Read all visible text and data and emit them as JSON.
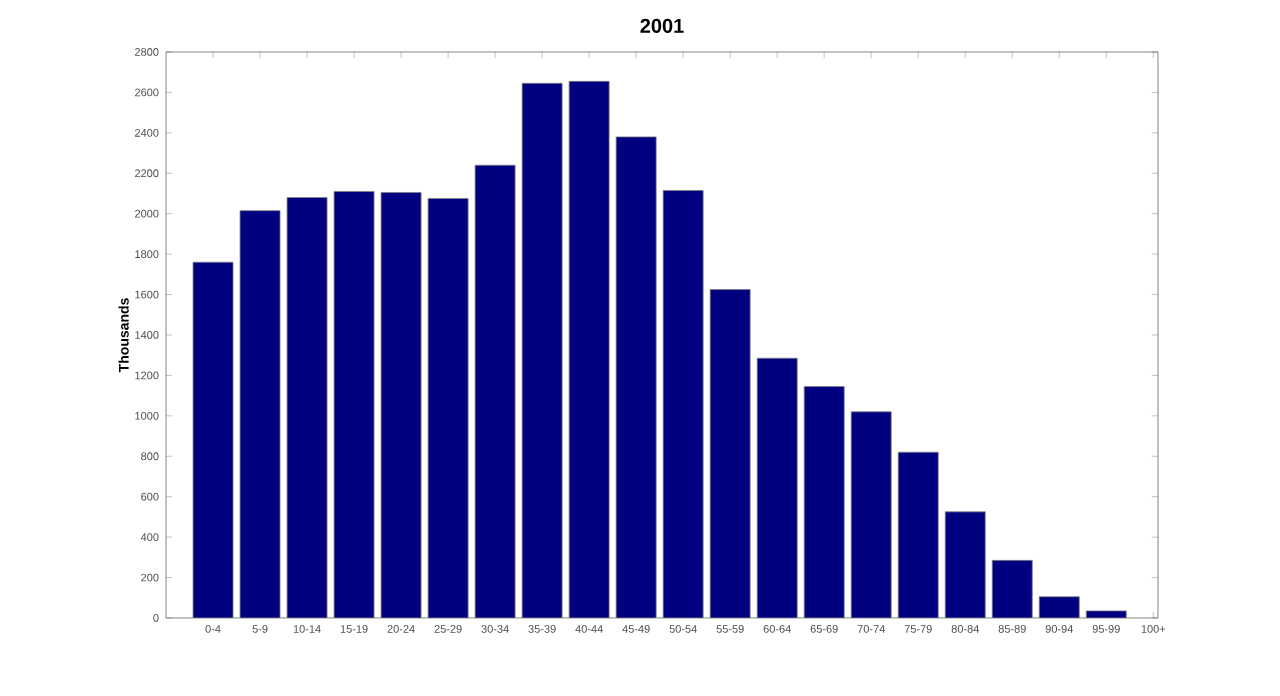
{
  "chart_data": {
    "type": "bar",
    "title": "2001",
    "ylabel": "Thousands",
    "categories": [
      "0-4",
      "5-9",
      "10-14",
      "15-19",
      "20-24",
      "25-29",
      "30-34",
      "35-39",
      "40-44",
      "45-49",
      "50-54",
      "55-59",
      "60-64",
      "65-69",
      "70-74",
      "75-79",
      "80-84",
      "85-89",
      "90-94",
      "95-99",
      "100+"
    ],
    "values": [
      1760,
      2015,
      2080,
      2110,
      2105,
      2075,
      2240,
      2645,
      2655,
      2380,
      2115,
      1625,
      1285,
      1145,
      1020,
      820,
      525,
      285,
      105,
      35,
      null
    ],
    "color": "#000080",
    "ylim": [
      0,
      2800
    ],
    "yticks": [
      0,
      200,
      400,
      600,
      800,
      1000,
      1200,
      1400,
      1600,
      1800,
      2000,
      2200,
      2400,
      2600,
      2800
    ],
    "grid": false
  }
}
